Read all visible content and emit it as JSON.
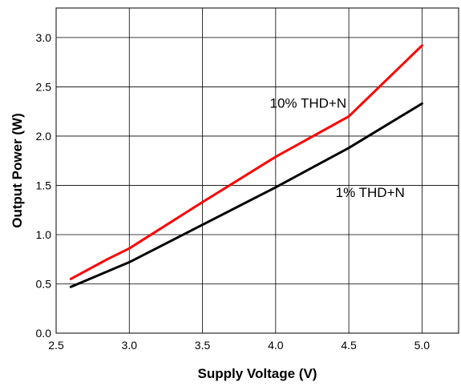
{
  "chart_data": {
    "type": "line",
    "title": "",
    "xlabel": "Supply Voltage (V)",
    "ylabel": "Output Power (W)",
    "xlim": [
      2.5,
      5.25
    ],
    "ylim": [
      0,
      3.3
    ],
    "grid": true,
    "x_ticks": [
      "2.5",
      "3.0",
      "3.5",
      "4.0",
      "4.5",
      "5.0"
    ],
    "y_ticks": [
      "0.0",
      "0.5",
      "1.0",
      "1.5",
      "2.0",
      "2.5",
      "3.0"
    ],
    "series": [
      {
        "name": "10% THD+N",
        "color": "#ff0000",
        "x": [
          2.6,
          2.85,
          3.0,
          3.5,
          4.0,
          4.5,
          5.0
        ],
        "y": [
          0.55,
          0.75,
          0.86,
          1.33,
          1.79,
          2.2,
          2.92
        ]
      },
      {
        "name": "1% THD+N",
        "color": "#000000",
        "x": [
          2.6,
          3.0,
          3.5,
          4.0,
          4.5,
          5.0
        ],
        "y": [
          0.47,
          0.72,
          1.1,
          1.48,
          1.88,
          2.33
        ]
      }
    ],
    "annotations": [
      "10% THD+N",
      "1% THD+N"
    ]
  }
}
